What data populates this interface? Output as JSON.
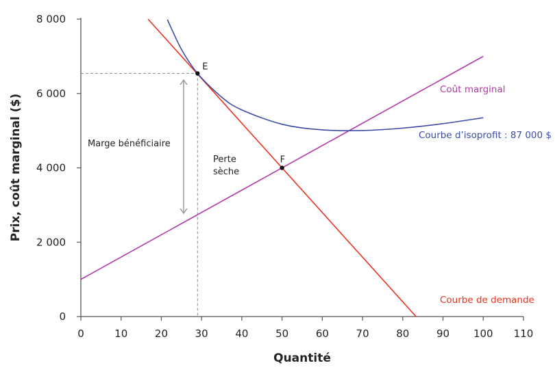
{
  "chart_data": {
    "type": "line",
    "title": "",
    "xlabel": "Quantité",
    "ylabel": "Prix, coût marginal ($)",
    "xlim": [
      0,
      110
    ],
    "ylim": [
      0,
      8000
    ],
    "x_ticks": [
      0,
      10,
      20,
      30,
      40,
      50,
      60,
      70,
      80,
      90,
      100,
      110
    ],
    "x_tick_labels": [
      "0",
      "10",
      "20",
      "30",
      "40",
      "50",
      "60",
      "70",
      "80",
      "90",
      "100",
      "110"
    ],
    "y_ticks": [
      0,
      2000,
      4000,
      6000,
      8000
    ],
    "y_tick_labels": [
      "0",
      "2 000",
      "4 000",
      "6 000",
      "8 000"
    ],
    "grid": false,
    "series": [
      {
        "name": "Courbe de demande",
        "color": "#e8321e",
        "x": [
          16.7,
          83.3
        ],
        "y": [
          8000,
          0
        ]
      },
      {
        "name": "Coût marginal",
        "color": "#b03aa8",
        "x": [
          0,
          100
        ],
        "y": [
          1000,
          7000
        ]
      },
      {
        "name": "Courbe d’isoprofit : 87 000 $",
        "color": "#3a4aa6",
        "x": [
          21.5,
          25,
          29,
          35,
          40,
          50,
          60,
          70,
          80,
          90,
          100
        ],
        "y": [
          7989,
          7188,
          6541,
          5902,
          5559,
          5174,
          5022,
          5004,
          5069,
          5189,
          5349
        ]
      }
    ],
    "points": [
      {
        "label": "E",
        "x": 29,
        "y": 6540
      },
      {
        "label": "F",
        "x": 50,
        "y": 4000
      }
    ],
    "annotations": [
      {
        "text": "Marge bénéficiaire"
      },
      {
        "text": "Perte",
        "text2": "sèche"
      }
    ]
  }
}
